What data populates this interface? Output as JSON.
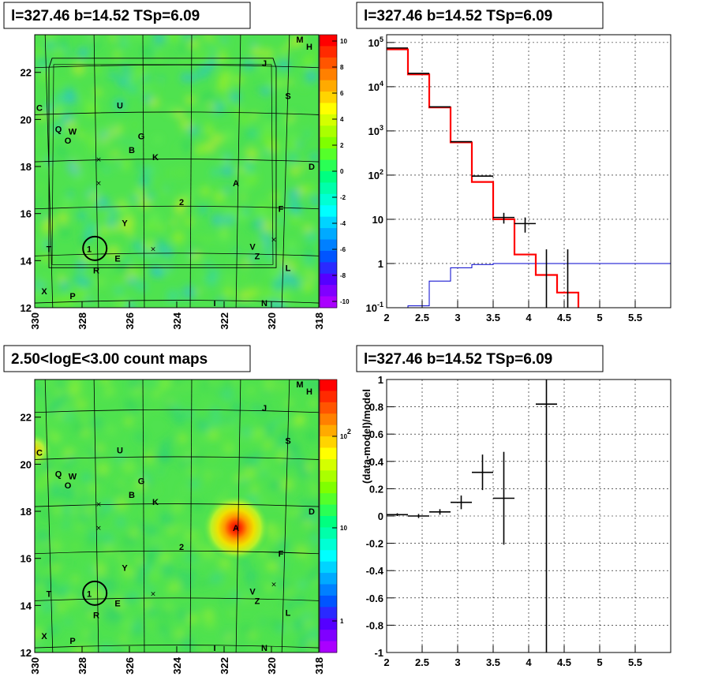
{
  "panels": {
    "tl_title": "l=327.46 b=14.52 TSp=6.09",
    "tr_title": "l=327.46 b=14.52 TSp=6.09",
    "bl_title": "2.50<logE<3.00 count maps",
    "br_title": "l=327.46 b=14.52 TSp=6.09"
  },
  "colors": {
    "data": "#000000",
    "model": "#ff0000",
    "background": "#0000cc",
    "grid": "#000000",
    "map_base": "#4fe24f"
  },
  "chart_data": [
    {
      "type": "heatmap",
      "title": "l=327.46 b=14.52 TSp=6.09",
      "x_ticks": [
        "330",
        "328",
        "326",
        "324",
        "322",
        "320",
        "318"
      ],
      "y_ticks": [
        "12",
        "14",
        "16",
        "18",
        "20",
        "22"
      ],
      "xlim": [
        330,
        318
      ],
      "ylim": [
        12,
        23.6
      ],
      "colorbar_ticks": [
        "10",
        "8",
        "6",
        "4",
        "2",
        "0",
        "-2",
        "-4",
        "-6",
        "-8",
        "-10"
      ],
      "colorbar_range": [
        -10,
        10
      ],
      "markers": [
        {
          "label": "M",
          "l": 318.8,
          "b": 23.4
        },
        {
          "label": "H",
          "l": 318.4,
          "b": 23.1
        },
        {
          "label": "J",
          "l": 320.3,
          "b": 22.4
        },
        {
          "label": "S",
          "l": 319.3,
          "b": 21.0
        },
        {
          "label": "C",
          "l": 329.8,
          "b": 20.5
        },
        {
          "label": "U",
          "l": 326.4,
          "b": 20.6
        },
        {
          "label": "Q",
          "l": 329.0,
          "b": 19.6
        },
        {
          "label": "W",
          "l": 328.4,
          "b": 19.5
        },
        {
          "label": "O",
          "l": 328.6,
          "b": 19.1
        },
        {
          "label": "G",
          "l": 325.5,
          "b": 19.3
        },
        {
          "label": "B",
          "l": 325.9,
          "b": 18.7
        },
        {
          "label": "K",
          "l": 324.9,
          "b": 18.4
        },
        {
          "label": "D",
          "l": 318.3,
          "b": 18.0
        },
        {
          "label": "A",
          "l": 321.5,
          "b": 17.3
        },
        {
          "label": "2",
          "l": 323.8,
          "b": 16.5
        },
        {
          "label": "F",
          "l": 319.6,
          "b": 16.2
        },
        {
          "label": "Y",
          "l": 326.2,
          "b": 15.6
        },
        {
          "label": "T",
          "l": 329.4,
          "b": 14.5
        },
        {
          "label": "1",
          "l": 327.7,
          "b": 14.5
        },
        {
          "label": "E",
          "l": 326.5,
          "b": 14.1
        },
        {
          "label": "V",
          "l": 320.8,
          "b": 14.6
        },
        {
          "label": "Z",
          "l": 320.6,
          "b": 14.2
        },
        {
          "label": "L",
          "l": 319.3,
          "b": 13.7
        },
        {
          "label": "R",
          "l": 327.4,
          "b": 13.6
        },
        {
          "label": "X",
          "l": 329.6,
          "b": 12.7
        },
        {
          "label": "P",
          "l": 328.4,
          "b": 12.5
        },
        {
          "label": "I",
          "l": 322.4,
          "b": 12.2
        },
        {
          "label": "N",
          "l": 320.3,
          "b": 12.2
        }
      ],
      "crosses": [
        {
          "l": 327.3,
          "b": 18.3
        },
        {
          "l": 327.3,
          "b": 17.3
        },
        {
          "l": 325.0,
          "b": 14.5
        },
        {
          "l": 319.9,
          "b": 14.9
        }
      ],
      "circle": {
        "l": 327.46,
        "b": 14.52,
        "r_deg": 0.5
      }
    },
    {
      "type": "line",
      "title": "l=327.46 b=14.52 TSp=6.09",
      "x_ticks": [
        "2",
        "2.5",
        "3",
        "3.5",
        "4",
        "4.5",
        "5",
        "5.5"
      ],
      "y_ticks": [
        "10^-1",
        "1",
        "10",
        "10^2",
        "10^3",
        "10^4",
        "10^5"
      ],
      "xlim": [
        2.0,
        6.0
      ],
      "ylim": [
        0.1,
        150000
      ],
      "y_scale": "log",
      "grid": true,
      "series": [
        {
          "edges": [
            2.0,
            2.3,
            2.6,
            2.9,
            3.2,
            3.5,
            3.8,
            4.1,
            4.4,
            4.7,
            6.0
          ],
          "values": [
            70000,
            19000,
            3400,
            550,
            70,
            10,
            1.6,
            0.55,
            0.22,
            0.09
          ]
        },
        {
          "edges": [
            2.0,
            2.3,
            2.6,
            2.9,
            3.2,
            3.5,
            3.8,
            4.1,
            4.4,
            4.7,
            6.0
          ],
          "values": [
            0.08,
            0.11,
            0.4,
            0.8,
            0.95,
            1.0,
            1.0,
            1.0,
            1.0,
            1.0
          ]
        },
        {
          "x": [
            2.15,
            2.45,
            2.75,
            3.05,
            3.35,
            3.65,
            3.95,
            4.25,
            4.55
          ],
          "y": [
            75000,
            20000,
            3500,
            570,
            95,
            11,
            8,
            0.09,
            0.09
          ],
          "yerr_lo": [
            0,
            0,
            0,
            0,
            0,
            3,
            3,
            0,
            0
          ],
          "yerr_hi": [
            0,
            0,
            0,
            0,
            0,
            3,
            3,
            2,
            2
          ]
        }
      ]
    },
    {
      "type": "heatmap",
      "title": "2.50<logE<3.00 count maps",
      "x_ticks": [
        "330",
        "328",
        "326",
        "324",
        "322",
        "320",
        "318"
      ],
      "y_ticks": [
        "12",
        "14",
        "16",
        "18",
        "20",
        "22"
      ],
      "xlim": [
        330,
        318
      ],
      "ylim": [
        12,
        23.6
      ],
      "colorbar_ticks": [
        "10^2",
        "10",
        "1"
      ],
      "colorbar_scale": "log",
      "hotspots": [
        {
          "l": 321.5,
          "b": 17.3,
          "strength": "peak"
        },
        {
          "l": 330.0,
          "b": 20.6,
          "strength": "moderate"
        }
      ]
    },
    {
      "type": "scatter",
      "title": "l=327.46 b=14.52 TSp=6.09",
      "ylabel": "(data-model)/model",
      "x_ticks": [
        "2",
        "2.5",
        "3",
        "3.5",
        "4",
        "4.5",
        "5",
        "5.5"
      ],
      "y_ticks": [
        "-1",
        "-0.8",
        "-0.6",
        "-0.4",
        "-0.2",
        "0",
        "0.2",
        "0.4",
        "0.6",
        "0.8",
        "1"
      ],
      "xlim": [
        2.0,
        6.0
      ],
      "ylim": [
        -1,
        1
      ],
      "grid": true,
      "points": [
        {
          "x": 2.15,
          "y": 0.01,
          "xerr": 0.15,
          "yerr": 0.01
        },
        {
          "x": 2.45,
          "y": 0.0,
          "xerr": 0.15,
          "yerr": 0.015
        },
        {
          "x": 2.75,
          "y": 0.03,
          "xerr": 0.15,
          "yerr": 0.02
        },
        {
          "x": 3.05,
          "y": 0.1,
          "xerr": 0.15,
          "yerr": 0.05
        },
        {
          "x": 3.35,
          "y": 0.32,
          "xerr": 0.15,
          "yerr": 0.13
        },
        {
          "x": 3.65,
          "y": 0.13,
          "xerr": 0.15,
          "yerr": 0.34
        },
        {
          "x": 4.25,
          "y": 0.82,
          "xerr": 0.15,
          "yerr": 1.9
        }
      ]
    }
  ]
}
